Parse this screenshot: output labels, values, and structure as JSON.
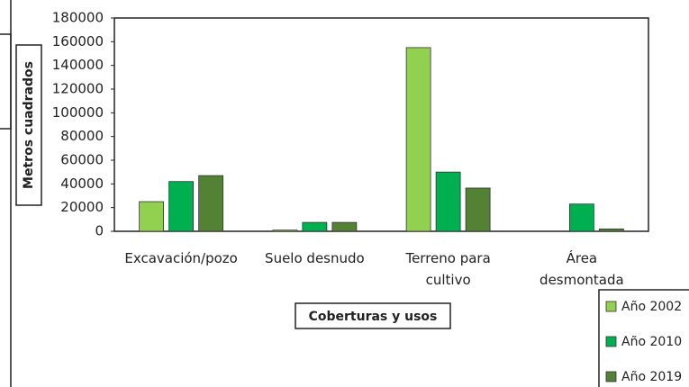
{
  "chart_data": {
    "type": "bar",
    "y_label": "Metros cuadrados",
    "x_label": "Coberturas y usos",
    "categories": [
      "Excavación/pozo",
      "Suelo desnudo",
      "Terreno para\ncultivo",
      "Área\ndesmontada"
    ],
    "series": [
      {
        "name": "Año 2002",
        "color": "#92d050",
        "values": [
          25000,
          1000,
          155000,
          0
        ]
      },
      {
        "name": "Año 2010",
        "color": "#00b050",
        "values": [
          42000,
          7500,
          50000,
          23000
        ]
      },
      {
        "name": "Año 2019",
        "color": "#548235",
        "values": [
          47000,
          7500,
          36500,
          2000
        ]
      }
    ],
    "ylim": [
      0,
      180000
    ],
    "yticks": [
      0,
      20000,
      40000,
      60000,
      80000,
      100000,
      120000,
      140000,
      160000,
      180000
    ],
    "grid": false,
    "legend": "bottom-right"
  }
}
